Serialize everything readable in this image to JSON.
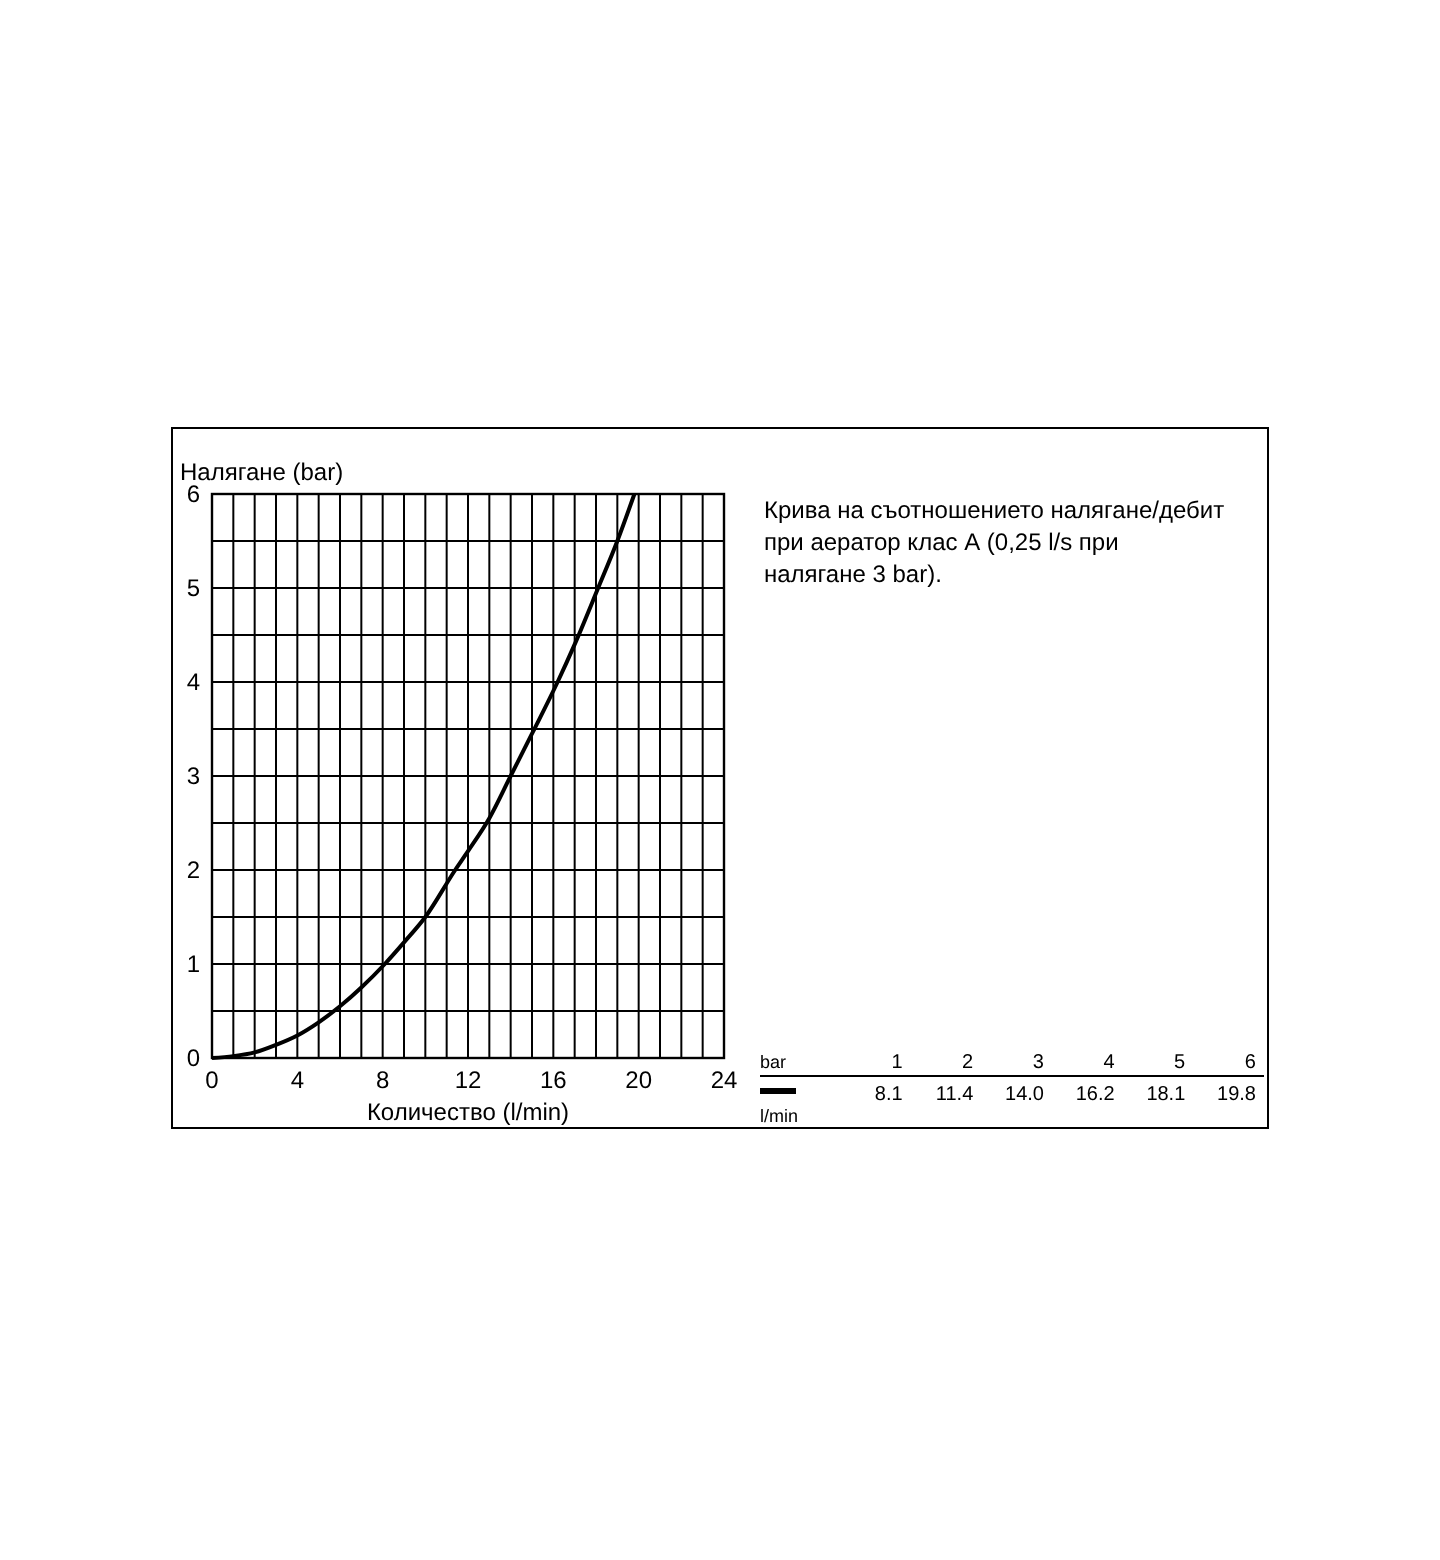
{
  "chart_data": [
    {
      "type": "line",
      "xlabel": "Количество (l/min)",
      "ylabel": "Налягане (bar)",
      "annotations": [
        "Крива на съотношението налягане/дебит при аератор клас А (0,25 l/s при налягане 3 bar)."
      ],
      "series": [
        {
          "color": "#000000",
          "x": [
            0,
            1,
            2,
            3,
            4,
            5,
            6,
            7,
            8.1,
            9,
            10,
            11.4,
            12,
            13,
            14.0,
            15,
            16.2,
            17,
            18.1,
            19,
            19.8
          ],
          "values": [
            0,
            0.02,
            0.06,
            0.14,
            0.24,
            0.38,
            0.55,
            0.75,
            1,
            1.23,
            1.5,
            2,
            2.2,
            2.55,
            3,
            3.45,
            4,
            4.4,
            5,
            5.5,
            6
          ]
        }
      ],
      "xlim": [
        0,
        24
      ],
      "ylim": [
        0,
        6
      ],
      "xticks": [
        0,
        {
          "value": 1,
          "label": null
        },
        {
          "value": 2,
          "label": null
        },
        {
          "value": 3,
          "label": null
        },
        4,
        {
          "value": 5,
          "label": null
        },
        {
          "value": 6,
          "label": null
        },
        {
          "value": 7,
          "label": null
        },
        8,
        {
          "value": 9,
          "label": null
        },
        {
          "value": 10,
          "label": null
        },
        {
          "value": 11,
          "label": null
        },
        12,
        {
          "value": 13,
          "label": null
        },
        {
          "value": 14,
          "label": null
        },
        {
          "value": 15,
          "label": null
        },
        16,
        {
          "value": 17,
          "label": null
        },
        {
          "value": 18,
          "label": null
        },
        {
          "value": 19,
          "label": null
        },
        20,
        {
          "value": 21,
          "label": null
        },
        {
          "value": 22,
          "label": null
        },
        {
          "value": 23,
          "label": null
        },
        24
      ],
      "yticks": [
        0,
        {
          "value": 0.5,
          "label": null
        },
        1,
        {
          "value": 1.5,
          "label": null
        },
        2,
        {
          "value": 2.5,
          "label": null
        },
        3,
        {
          "value": 3.5,
          "label": null
        },
        4,
        {
          "value": 4.5,
          "label": null
        },
        5,
        {
          "value": 5.5,
          "label": null
        },
        6
      ],
      "grid": true,
      "line_style": "solid",
      "marker": "none"
    },
    {
      "type": "other",
      "annotations": [
        "bar 1 2 3 4 5 6",
        "8.1 11.4 14.0 16.2 18.1 19.8",
        "l/min"
      ]
    }
  ]
}
